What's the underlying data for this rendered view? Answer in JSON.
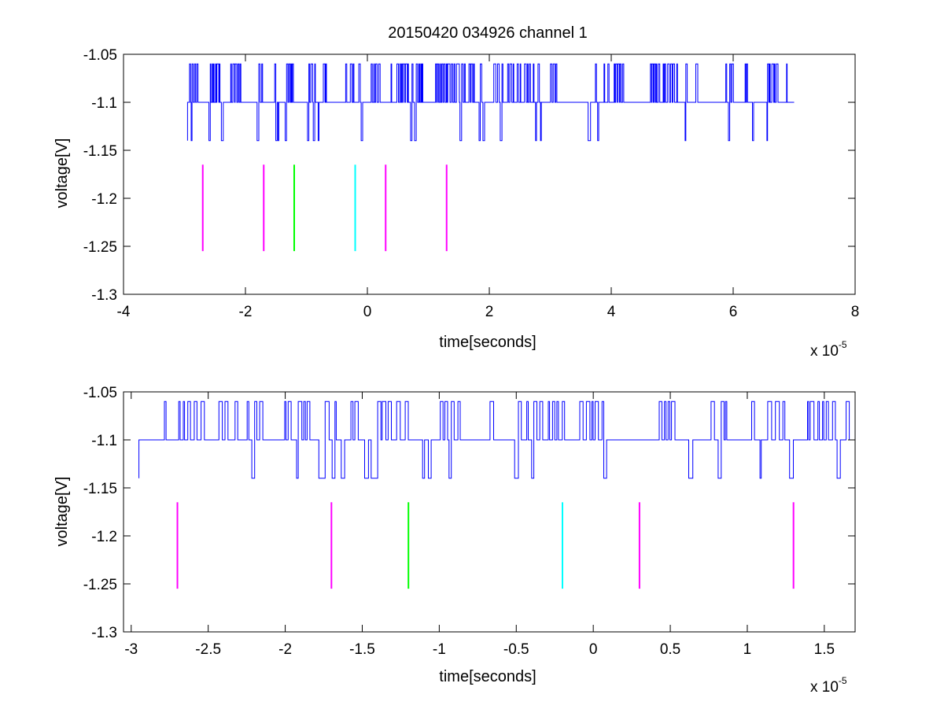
{
  "figure": {
    "title": "20150420 034926 channel 1"
  },
  "colors": {
    "signal": "#0000ff",
    "magenta": "#ff00ff",
    "green": "#00ff00",
    "cyan": "#00ffff"
  },
  "chart_data": [
    {
      "type": "line",
      "title": "20150420 034926 channel 1",
      "xlabel": "time[seconds]",
      "ylabel": "voltage[V]",
      "x_multiplier": "x 10",
      "x_multiplier_exp": "-5",
      "xlim": [
        -4,
        8
      ],
      "ylim": [
        -1.3,
        -1.05
      ],
      "xticks": [
        -4,
        -2,
        0,
        2,
        4,
        6,
        8
      ],
      "xtick_labels": [
        "-4",
        "-2",
        "0",
        "2",
        "4",
        "6",
        "8"
      ],
      "yticks": [
        -1.3,
        -1.25,
        -1.2,
        -1.15,
        -1.1,
        -1.05
      ],
      "ytick_labels": [
        "-1.3",
        "-1.25",
        "-1.2",
        "-1.15",
        "-1.1",
        "-1.05"
      ],
      "grid": false,
      "signal": {
        "x_range": [
          -2.95,
          7.0
        ],
        "levels": [
          -1.14,
          -1.1,
          -1.06
        ],
        "baseline": -1.1
      },
      "markers": [
        {
          "x": -2.7,
          "y": [
            -1.255,
            -1.165
          ],
          "color": "magenta"
        },
        {
          "x": -1.7,
          "y": [
            -1.255,
            -1.165
          ],
          "color": "magenta"
        },
        {
          "x": -1.2,
          "y": [
            -1.255,
            -1.165
          ],
          "color": "green"
        },
        {
          "x": -0.2,
          "y": [
            -1.255,
            -1.165
          ],
          "color": "cyan"
        },
        {
          "x": 0.3,
          "y": [
            -1.255,
            -1.165
          ],
          "color": "magenta"
        },
        {
          "x": 1.3,
          "y": [
            -1.255,
            -1.165
          ],
          "color": "magenta"
        }
      ]
    },
    {
      "type": "line",
      "xlabel": "time[seconds]",
      "ylabel": "voltage[V]",
      "x_multiplier": "x 10",
      "x_multiplier_exp": "-5",
      "xlim": [
        -3.05,
        1.7
      ],
      "ylim": [
        -1.3,
        -1.05
      ],
      "xticks": [
        -3,
        -2.5,
        -2,
        -1.5,
        -1,
        -0.5,
        0,
        0.5,
        1,
        1.5
      ],
      "xtick_labels": [
        "-3",
        "-2.5",
        "-2",
        "-1.5",
        "-1",
        "-0.5",
        "0",
        "0.5",
        "1",
        "1.5"
      ],
      "yticks": [
        -1.3,
        -1.25,
        -1.2,
        -1.15,
        -1.1,
        -1.05
      ],
      "ytick_labels": [
        "-1.3",
        "-1.25",
        "-1.2",
        "-1.15",
        "-1.1",
        "-1.05"
      ],
      "grid": false,
      "signal": {
        "x_range": [
          -2.95,
          1.7
        ],
        "levels": [
          -1.14,
          -1.1,
          -1.06
        ],
        "baseline": -1.1
      },
      "markers": [
        {
          "x": -2.7,
          "y": [
            -1.255,
            -1.165
          ],
          "color": "magenta"
        },
        {
          "x": -1.7,
          "y": [
            -1.255,
            -1.165
          ],
          "color": "magenta"
        },
        {
          "x": -1.2,
          "y": [
            -1.255,
            -1.165
          ],
          "color": "green"
        },
        {
          "x": -0.2,
          "y": [
            -1.255,
            -1.165
          ],
          "color": "cyan"
        },
        {
          "x": 0.3,
          "y": [
            -1.255,
            -1.165
          ],
          "color": "magenta"
        },
        {
          "x": 1.3,
          "y": [
            -1.255,
            -1.165
          ],
          "color": "magenta"
        }
      ]
    }
  ]
}
